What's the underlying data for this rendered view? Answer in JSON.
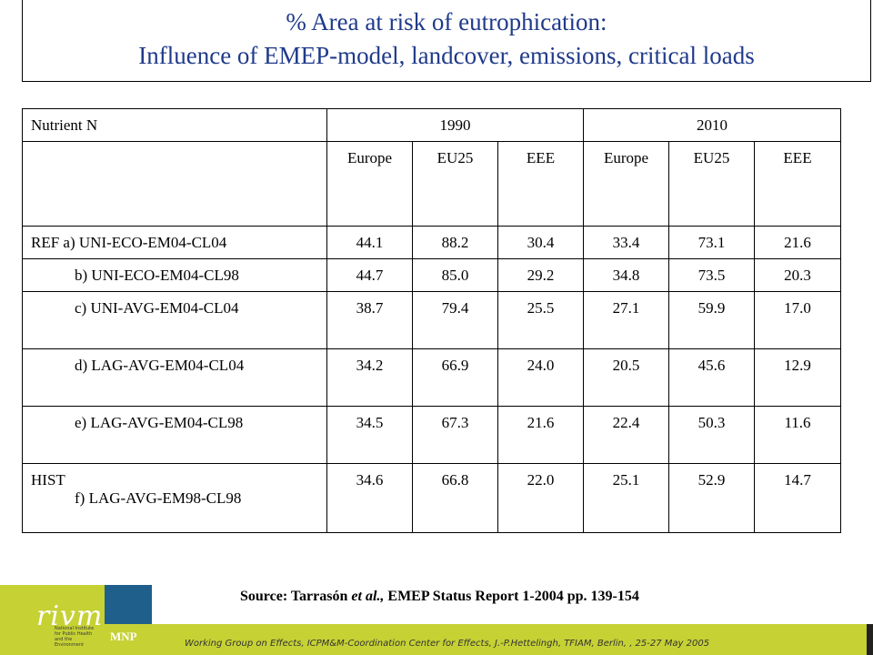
{
  "title": {
    "line1": "% Area at risk of eutrophication:",
    "line2": "Influence of EMEP-model, landcover, emissions, critical loads"
  },
  "table": {
    "corner": "Nutrient N",
    "years": [
      "1990",
      "2010"
    ],
    "subheaders": [
      "Europe",
      "EU25",
      "EEE",
      "Europe",
      "EU25",
      "EEE"
    ],
    "rows": [
      {
        "label": "REF a) UNI-ECO-EM04-CL04",
        "values": [
          "44.1",
          "88.2",
          "30.4",
          "33.4",
          "73.1",
          "21.6"
        ]
      },
      {
        "label": "b) UNI-ECO-EM04-CL98",
        "values": [
          "44.7",
          "85.0",
          "29.2",
          "34.8",
          "73.5",
          "20.3"
        ]
      },
      {
        "label": "c) UNI-AVG-EM04-CL04",
        "values": [
          "38.7",
          "79.4",
          "25.5",
          "27.1",
          "59.9",
          "17.0"
        ]
      },
      {
        "label": "d) LAG-AVG-EM04-CL04",
        "values": [
          "34.2",
          "66.9",
          "24.0",
          "20.5",
          "45.6",
          "12.9"
        ]
      },
      {
        "label": "e) LAG-AVG-EM04-CL98",
        "values": [
          "34.5",
          "67.3",
          "21.6",
          "22.4",
          "50.3",
          "11.6"
        ]
      },
      {
        "label_line1": "HIST",
        "label_line2": "f) LAG-AVG-EM98-CL98",
        "values": [
          "34.6",
          "66.8",
          "22.0",
          "25.1",
          "52.9",
          "14.7"
        ]
      }
    ]
  },
  "source": {
    "prefix": "Source: Tarrasón ",
    "etal": "et al.,",
    "suffix": " EMEP Status Report 1-2004 pp. 139-154"
  },
  "branding": {
    "logo": "rivm",
    "logo_small": "National Institute for Public Health and the Environment",
    "mnp": "MNP"
  },
  "footer": "Working Group on Effects, ICPM&M-Coordination Center for Effects, J.-P.Hettelingh, TFIAM, Berlin, , 25-27 May 2005",
  "colors": {
    "title": "#1f3a8a",
    "green": "#c6d134",
    "blue": "#1f5f8b"
  }
}
